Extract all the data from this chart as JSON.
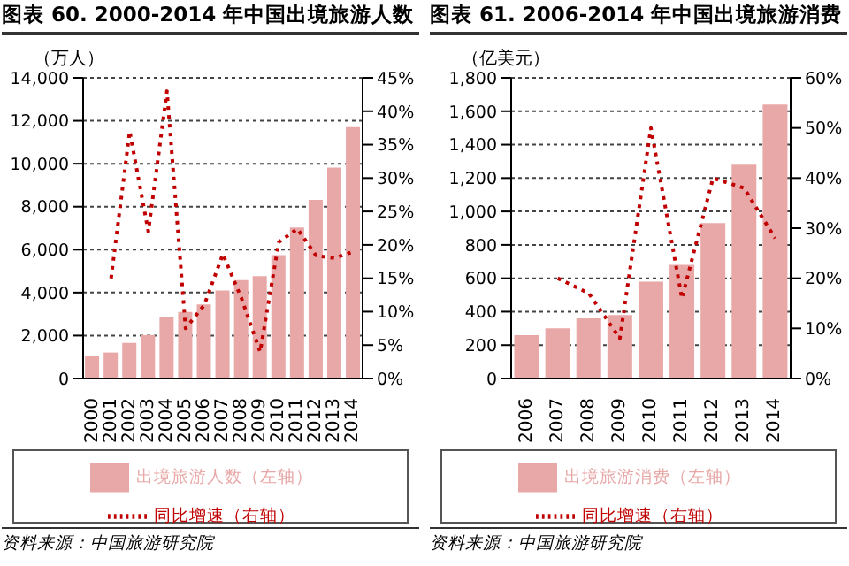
{
  "chart_data": [
    {
      "type": "bar",
      "title": "图表 60. 2000-2014 年中国出境旅游人数",
      "ylabel": "（万人）",
      "categories": [
        "2000",
        "2001",
        "2002",
        "2003",
        "2004",
        "2005",
        "2006",
        "2007",
        "2008",
        "2009",
        "2010",
        "2011",
        "2012",
        "2013",
        "2014"
      ],
      "series": [
        {
          "name": "出境旅游人数（左轴）",
          "color": "#e8a8a8",
          "values": [
            1050,
            1210,
            1660,
            2020,
            2880,
            3100,
            3450,
            4100,
            4580,
            4770,
            5740,
            7030,
            8320,
            9820,
            11700
          ]
        },
        {
          "name": "同比增速（右轴）",
          "type": "line",
          "axis": "y2",
          "color": "#c00000",
          "line_style": "dotted",
          "values": [
            null,
            15,
            37,
            22,
            43,
            7.5,
            11,
            18.6,
            12,
            4,
            20.4,
            22.4,
            18.4,
            18,
            19
          ]
        }
      ],
      "ylim": [
        0,
        14000
      ],
      "yticks": [
        {
          "value": 0,
          "label": "0"
        },
        {
          "value": 2000,
          "label": "2,000"
        },
        {
          "value": 4000,
          "label": "4,000"
        },
        {
          "value": 6000,
          "label": "6,000"
        },
        {
          "value": 8000,
          "label": "8,000"
        },
        {
          "value": 10000,
          "label": "10,000"
        },
        {
          "value": 12000,
          "label": "12,000"
        },
        {
          "value": 14000,
          "label": "14,000"
        }
      ],
      "y2lim": [
        0,
        45
      ],
      "y2ticks": [
        {
          "value": 0,
          "label": "0%"
        },
        {
          "value": 5,
          "label": "5%"
        },
        {
          "value": 10,
          "label": "10%"
        },
        {
          "value": 15,
          "label": "15%"
        },
        {
          "value": 20,
          "label": "20%"
        },
        {
          "value": 25,
          "label": "25%"
        },
        {
          "value": 30,
          "label": "30%"
        },
        {
          "value": 35,
          "label": "35%"
        },
        {
          "value": 40,
          "label": "40%"
        },
        {
          "value": 45,
          "label": "45%"
        }
      ],
      "grid": "y",
      "legend": "bottom",
      "marker": "none",
      "annotations": [
        "资料来源：中国旅游研究院"
      ]
    },
    {
      "type": "bar",
      "title": "图表 61. 2006-2014 年中国出境旅游消费",
      "ylabel": "（亿美元）",
      "categories": [
        "2006",
        "2007",
        "2008",
        "2009",
        "2010",
        "2011",
        "2012",
        "2013",
        "2014"
      ],
      "series": [
        {
          "name": "出境旅游消费（左轴）",
          "color": "#e8a8a8",
          "values": [
            260,
            300,
            360,
            380,
            580,
            680,
            930,
            1280,
            1640
          ]
        },
        {
          "name": "同比增速（右轴）",
          "type": "line",
          "axis": "y2",
          "color": "#c00000",
          "line_style": "dotted",
          "values": [
            null,
            20,
            17,
            8,
            50,
            16,
            40,
            38,
            28
          ]
        }
      ],
      "ylim": [
        0,
        1800
      ],
      "yticks": [
        {
          "value": 0,
          "label": "0"
        },
        {
          "value": 200,
          "label": "200"
        },
        {
          "value": 400,
          "label": "400"
        },
        {
          "value": 600,
          "label": "600"
        },
        {
          "value": 800,
          "label": "800"
        },
        {
          "value": 1000,
          "label": "1,000"
        },
        {
          "value": 1200,
          "label": "1,200"
        },
        {
          "value": 1400,
          "label": "1,400"
        },
        {
          "value": 1600,
          "label": "1,600"
        },
        {
          "value": 1800,
          "label": "1,800"
        }
      ],
      "y2lim": [
        0,
        60
      ],
      "y2ticks": [
        {
          "value": 0,
          "label": "0%"
        },
        {
          "value": 10,
          "label": "10%"
        },
        {
          "value": 20,
          "label": "20%"
        },
        {
          "value": 30,
          "label": "30%"
        },
        {
          "value": 40,
          "label": "40%"
        },
        {
          "value": 50,
          "label": "50%"
        },
        {
          "value": 60,
          "label": "60%"
        }
      ],
      "grid": "y",
      "legend": "bottom",
      "marker": "none",
      "annotations": [
        "资料来源：中国旅游研究院"
      ]
    }
  ]
}
